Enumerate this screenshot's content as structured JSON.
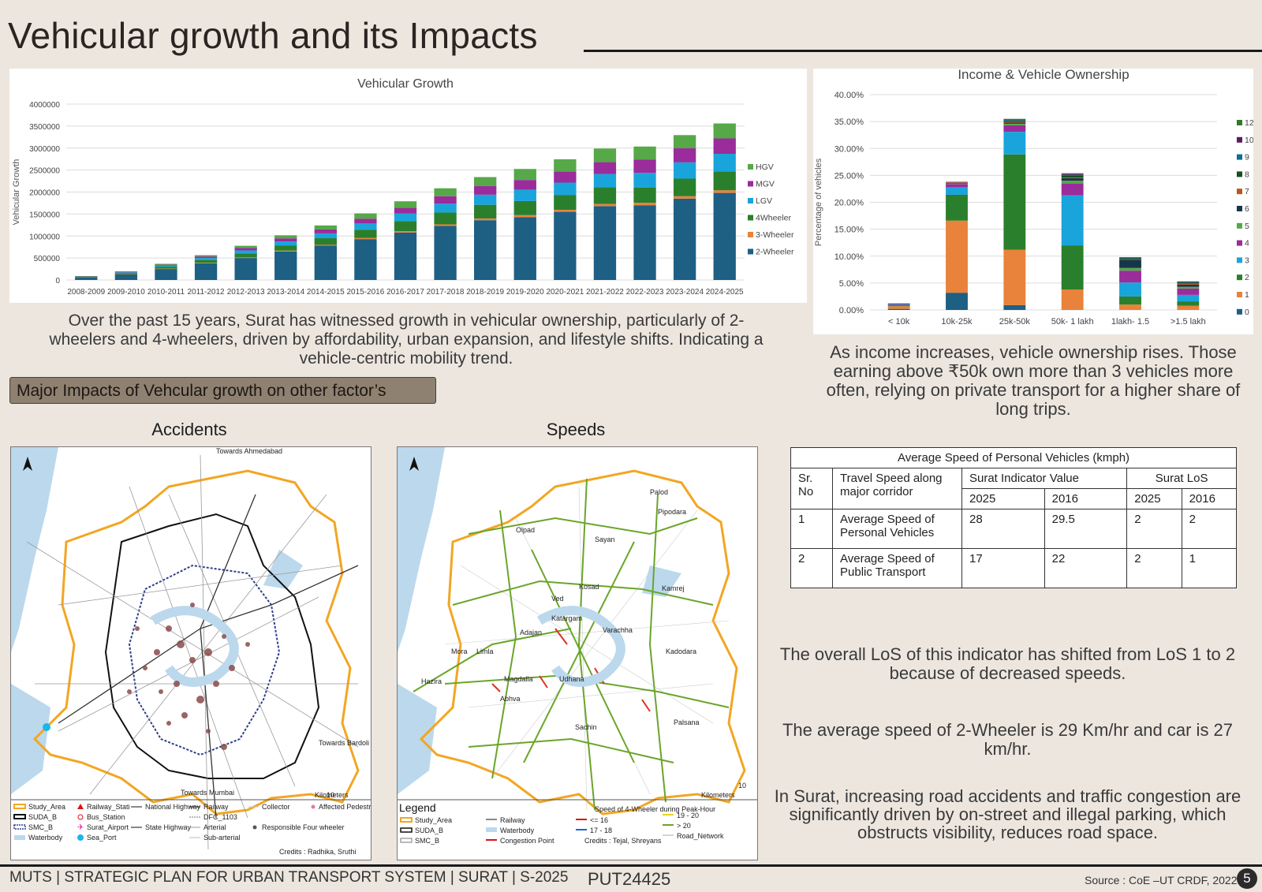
{
  "page": {
    "title": "Vehicular growth and its Impacts",
    "growth_paragraph": "Over the past 15 years, Surat has witnessed growth in vehicular ownership, particularly of 2-wheelers and 4-wheelers, driven by affordability, urban expansion, and lifestyle shifts. Indicating a vehicle-centric mobility trend.",
    "income_paragraph": "As income increases, vehicle ownership rises. Those earning above ₹50k own more than 3 vehicles more often, relying on private transport for a higher share of long trips.",
    "impacts_button": "Major Impacts of Vehcular growth on other factor’s",
    "accidents_title": "Accidents",
    "speeds_title": "Speeds",
    "los_paragraph": "The overall LoS of this indicator has shifted from LoS 1 to 2 because of decreased speeds.",
    "avg_speed_paragraph": "The average speed  of 2-Wheeler is 29 Km/hr and car is 27 km/hr.",
    "parking_paragraph": "In Surat, increasing road accidents and traffic congestion are significantly driven by on-street and illegal parking, which obstructs visibility, reduces road space."
  },
  "footer": {
    "left": "MUTS |  STRATEGIC PLAN FOR URBAN TRANSPORT SYSTEM | SURAT | S-2025",
    "code": "PUT24425",
    "source": "Source : CoE –UT  CRDF, 2022",
    "page_number": "5"
  },
  "speed_table": {
    "caption": "Average Speed of Personal Vehicles (kmph)",
    "h_sr": "Sr.\nNo",
    "h_travel": "Travel Speed along major corridor",
    "h_indicator": "Surat Indicator Value",
    "h_los": "Surat LoS",
    "y1": "2025",
    "y2": "2016",
    "y3": "2025",
    "y4": "2016",
    "rows": [
      {
        "sr": "1",
        "label": "Average Speed of Personal Vehicles",
        "v2025": "28",
        "v2016": "29.5",
        "l2025": "2",
        "l2016": "2"
      },
      {
        "sr": "2",
        "label": "Average Speed of Public Transport",
        "v2025": "17",
        "v2016": "22",
        "l2025": "2",
        "l2016": "1"
      }
    ]
  },
  "accidents_map": {
    "labels": [
      "Towards Ahmedabad",
      "Towards Mumbai",
      "Towards Bardoli"
    ],
    "legend": [
      "Study_Area",
      "SUDA_B",
      "SMC_B",
      "Waterbody",
      "Railway_Stati",
      "Bus_Station",
      "Surat_Airport",
      "Sea_Port",
      "National Highway",
      "State Highway",
      "Railway",
      "DFC_1103",
      "Arterial",
      "Sub-arterial",
      "Collector",
      "Responsible Four wheeler",
      "Affected Pedestrian"
    ],
    "credits": "Credits : Radhika, Sruthi",
    "scale_label": "Kilometers",
    "scale_max": "10"
  },
  "speeds_map": {
    "legend_title": "Legend",
    "speed_title": "Speed of 4-Wheeler during Peak-Hour",
    "legend": [
      "Study_Area",
      "SUDA_B",
      "SMC_B",
      "Railway",
      "Waterbody",
      "Congestion Point",
      "<= 16",
      "17 - 18",
      "19 - 20",
      "> 20",
      "Road_Network"
    ],
    "credits": "Credits : Tejal, Shreyans",
    "place_names": [
      "Palod",
      "Pipodara",
      "Olpad",
      "Sayan",
      "Kosad",
      "Kamrej",
      "Ved",
      "Katargam",
      "Adajan",
      "Varachha",
      "Mora",
      "Limla",
      "Hazira",
      "Magdalla",
      "Udhana",
      "Abhva",
      "Sachin",
      "Palsana",
      "Kadodara"
    ],
    "scale_label": "Kilometers",
    "scale_max": "10"
  },
  "chart_data": [
    {
      "type": "bar",
      "stacked": true,
      "title": "Vehicular Growth",
      "ylabel": "Vehicular Growth",
      "xlabel": "",
      "ylim": [
        0,
        4000000
      ],
      "yticks": [
        "0",
        "500000",
        "1000000",
        "1500000",
        "2000000",
        "2500000",
        "3000000",
        "3500000",
        "4000000"
      ],
      "grid": true,
      "legend_position": "right",
      "categories": [
        "2008-2009",
        "2009-2010",
        "2010-2011",
        "2011-2012",
        "2012-2013",
        "2013-2014",
        "2014-2015",
        "2015-2016",
        "2016-2017",
        "2017-2018",
        "2018-2019",
        "2019-2020",
        "2020-2021",
        "2021-2022",
        "2022-2023",
        "2023-2024",
        "2024-2025"
      ],
      "series": [
        {
          "name": "2-Wheeler",
          "color": "#1e5f84",
          "values": [
            60000,
            130000,
            250000,
            380000,
            500000,
            650000,
            780000,
            930000,
            1080000,
            1230000,
            1360000,
            1430000,
            1550000,
            1680000,
            1700000,
            1850000,
            1980000
          ]
        },
        {
          "name": "3-Wheeler",
          "color": "#e9823a",
          "values": [
            2000,
            5000,
            8000,
            10000,
            13000,
            17000,
            20000,
            25000,
            30000,
            35000,
            40000,
            45000,
            45000,
            50000,
            55000,
            55000,
            60000
          ]
        },
        {
          "name": "4Wheeler",
          "color": "#2a7f2c",
          "values": [
            12000,
            25000,
            45000,
            65000,
            90000,
            120000,
            150000,
            190000,
            230000,
            270000,
            310000,
            320000,
            340000,
            380000,
            350000,
            400000,
            430000
          ]
        },
        {
          "name": "LGV",
          "color": "#1aa4dc",
          "values": [
            6000,
            15000,
            25000,
            45000,
            70000,
            90000,
            110000,
            140000,
            170000,
            200000,
            230000,
            260000,
            280000,
            300000,
            330000,
            370000,
            400000
          ]
        },
        {
          "name": "MGV",
          "color": "#9a2c9b",
          "values": [
            5000,
            12000,
            20000,
            35000,
            55000,
            70000,
            90000,
            110000,
            130000,
            170000,
            200000,
            220000,
            250000,
            270000,
            300000,
            320000,
            350000
          ]
        },
        {
          "name": "HGV",
          "color": "#56a848",
          "values": [
            5000,
            10000,
            20000,
            30000,
            50000,
            70000,
            90000,
            120000,
            150000,
            180000,
            200000,
            250000,
            280000,
            310000,
            300000,
            300000,
            340000
          ]
        }
      ]
    },
    {
      "type": "bar",
      "stacked": true,
      "title": "Income & Vehicle Ownership",
      "ylabel": "Percentage of vehicles",
      "xlabel": "",
      "ylim": [
        0,
        40
      ],
      "yticks": [
        "0.00%",
        "5.00%",
        "10.00%",
        "15.00%",
        "20.00%",
        "25.00%",
        "30.00%",
        "35.00%",
        "40.00%"
      ],
      "grid": true,
      "legend_position": "right",
      "categories": [
        "< 10k",
        "10k-25k",
        "25k-50k",
        "50k- 1 lakh",
        "1lakh- 1.5",
        ">1.5 lakh"
      ],
      "series": [
        {
          "name": "0",
          "color": "#1e5f84",
          "values": [
            0.2,
            3.2,
            0.9,
            0,
            0,
            0
          ]
        },
        {
          "name": "1",
          "color": "#e9823a",
          "values": [
            0.5,
            13.4,
            10.3,
            3.8,
            1.0,
            0.8
          ]
        },
        {
          "name": "2",
          "color": "#2a7f2c",
          "values": [
            0.2,
            4.8,
            17.7,
            8.2,
            1.5,
            0.8
          ]
        },
        {
          "name": "3",
          "color": "#1aa4dc",
          "values": [
            0.1,
            1.4,
            4.2,
            9.3,
            2.6,
            1.2
          ]
        },
        {
          "name": "4",
          "color": "#9a2c9b",
          "values": [
            0.1,
            0.6,
            1.2,
            2.2,
            2.2,
            1.2
          ]
        },
        {
          "name": "5",
          "color": "#56a848",
          "values": [
            0,
            0.1,
            0.3,
            0.5,
            0.5,
            0.3
          ]
        },
        {
          "name": "6",
          "color": "#15364a",
          "values": [
            0.1,
            0.1,
            0.2,
            0.5,
            1.5,
            0.4
          ]
        },
        {
          "name": "7",
          "color": "#b8571d",
          "values": [
            0,
            0.1,
            0.2,
            0.1,
            0.1,
            0.2
          ]
        },
        {
          "name": "8",
          "color": "#174f1b",
          "values": [
            0,
            0,
            0.2,
            0.4,
            0.2,
            0.2
          ]
        },
        {
          "name": "9",
          "color": "#0f6d94",
          "values": [
            0,
            0,
            0.1,
            0.1,
            0.1,
            0.1
          ]
        },
        {
          "name": "10",
          "color": "#5e1a5f",
          "values": [
            0,
            0.1,
            0.1,
            0.2,
            0.1,
            0.1
          ]
        },
        {
          "name": "12",
          "color": "#2f7a28",
          "values": [
            0,
            0,
            0.1,
            0.1,
            0,
            0
          ]
        }
      ]
    }
  ]
}
